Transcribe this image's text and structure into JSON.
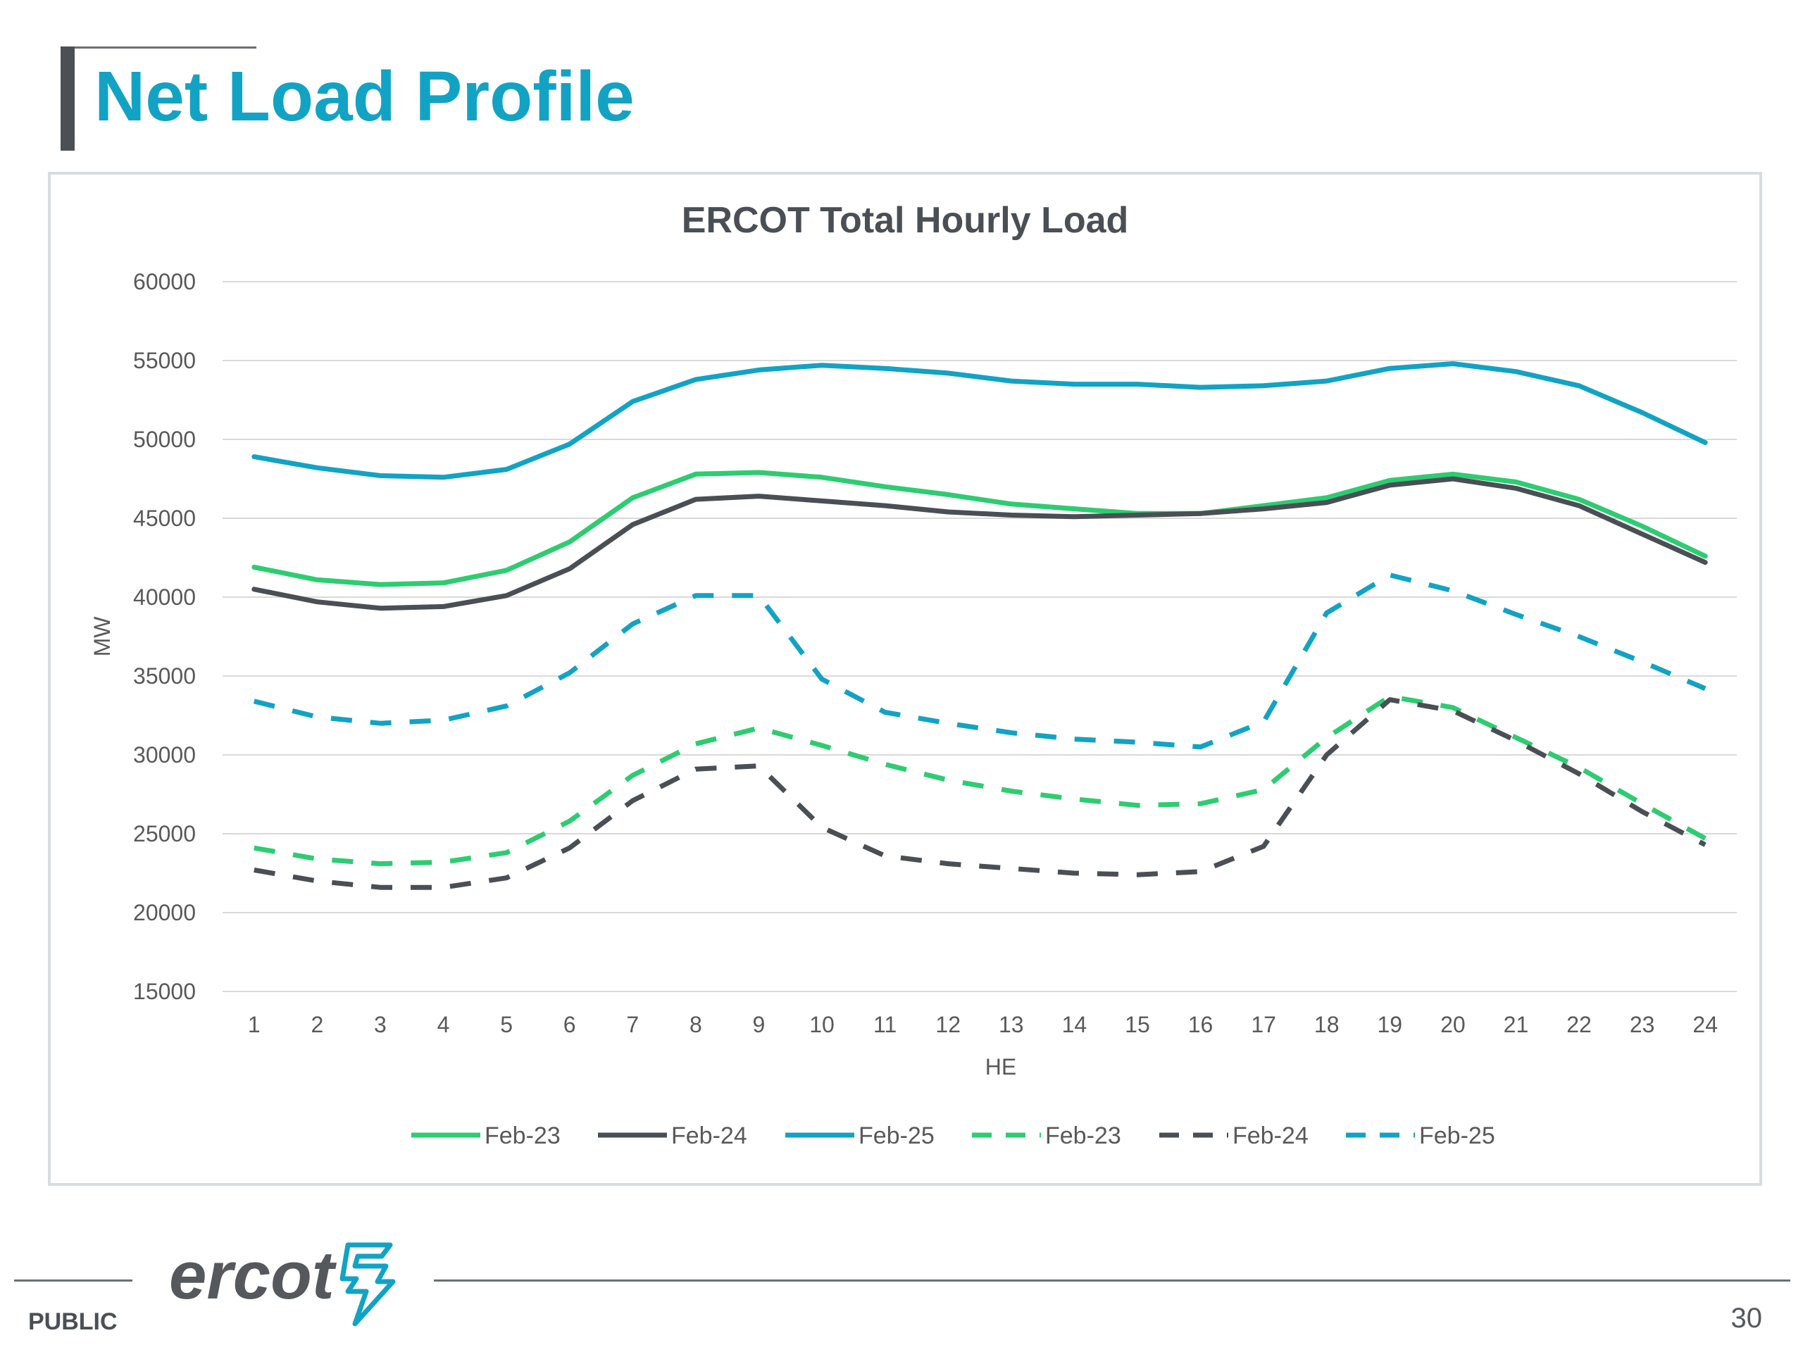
{
  "slide": {
    "title": "Net Load Profile",
    "footer_label": "PUBLIC",
    "page_number": "30",
    "logo_text": "ercot"
  },
  "colors": {
    "title": "#12a3c4",
    "feb23": "#2ecc71",
    "feb24": "#4a4f55",
    "feb25": "#12a3c4"
  },
  "chart_data": {
    "type": "line",
    "title": "ERCOT Total Hourly Load",
    "xlabel": "HE",
    "ylabel": "MW",
    "ylim": [
      15000,
      60000
    ],
    "yticks": [
      15000,
      20000,
      25000,
      30000,
      35000,
      40000,
      45000,
      50000,
      55000,
      60000
    ],
    "x": [
      1,
      2,
      3,
      4,
      5,
      6,
      7,
      8,
      9,
      10,
      11,
      12,
      13,
      14,
      15,
      16,
      17,
      18,
      19,
      20,
      21,
      22,
      23,
      24
    ],
    "grid": true,
    "legend_position": "bottom",
    "series": [
      {
        "name": "Feb-23",
        "style": "solid",
        "color": "#2ecc71",
        "values": [
          41900,
          41100,
          40800,
          40900,
          41700,
          43500,
          46300,
          47800,
          47900,
          47600,
          47000,
          46500,
          45900,
          45600,
          45300,
          45300,
          45800,
          46300,
          47400,
          47800,
          47300,
          46200,
          44500,
          42600
        ]
      },
      {
        "name": "Feb-24",
        "style": "solid",
        "color": "#4a4f55",
        "values": [
          40500,
          39700,
          39300,
          39400,
          40100,
          41800,
          44600,
          46200,
          46400,
          46100,
          45800,
          45400,
          45200,
          45100,
          45200,
          45300,
          45600,
          46000,
          47100,
          47500,
          46900,
          45800,
          44000,
          42200
        ]
      },
      {
        "name": "Feb-25",
        "style": "solid",
        "color": "#12a3c4",
        "values": [
          48900,
          48200,
          47700,
          47600,
          48100,
          49700,
          52400,
          53800,
          54400,
          54700,
          54500,
          54200,
          53700,
          53500,
          53500,
          53300,
          53400,
          53700,
          54500,
          54800,
          54300,
          53400,
          51700,
          49800
        ]
      },
      {
        "name": "Feb-23",
        "style": "dashed",
        "color": "#2ecc71",
        "values": [
          24100,
          23400,
          23100,
          23200,
          23800,
          25800,
          28700,
          30700,
          31700,
          30600,
          29400,
          28400,
          27700,
          27200,
          26800,
          26900,
          27800,
          31100,
          33700,
          33000,
          31100,
          29200,
          26900,
          24700
        ]
      },
      {
        "name": "Feb-24",
        "style": "dashed",
        "color": "#4a4f55",
        "values": [
          22700,
          22000,
          21600,
          21600,
          22200,
          24100,
          27100,
          29100,
          29300,
          25400,
          23600,
          23100,
          22800,
          22500,
          22400,
          22600,
          24200,
          30000,
          33500,
          32800,
          30900,
          28800,
          26400,
          24300
        ]
      },
      {
        "name": "Feb-25",
        "style": "dashed",
        "color": "#12a3c4",
        "values": [
          33400,
          32400,
          32000,
          32200,
          33100,
          35200,
          38300,
          40100,
          40100,
          34800,
          32700,
          32000,
          31400,
          31000,
          30800,
          30500,
          32100,
          39000,
          41400,
          40400,
          38900,
          37500,
          35900,
          34200
        ]
      }
    ]
  }
}
